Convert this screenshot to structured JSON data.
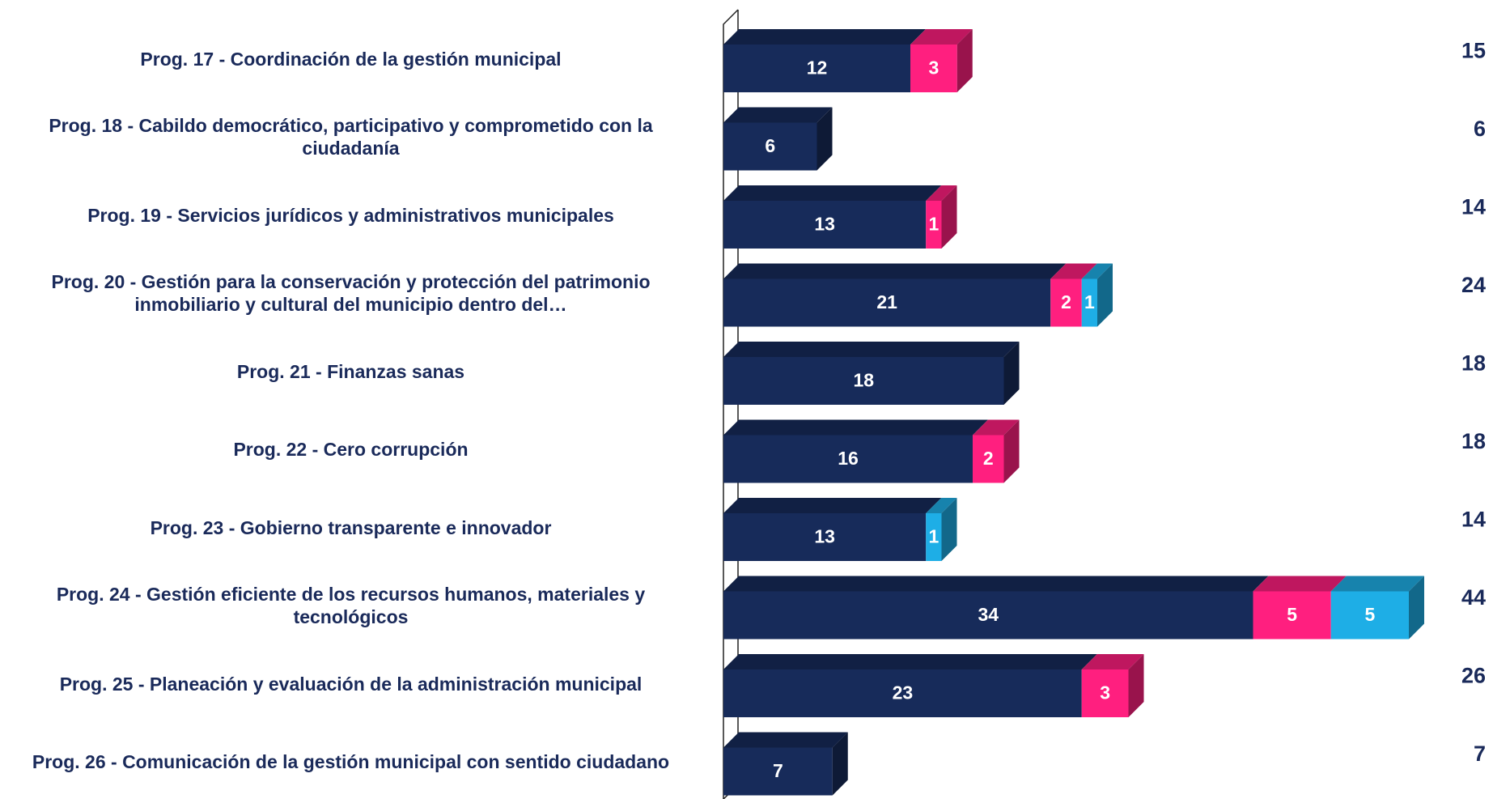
{
  "chart_data": {
    "type": "bar",
    "orientation": "horizontal",
    "stacked": true,
    "categories": [
      "Prog. 17 - Coordinación de la gestión municipal",
      "Prog. 18 - Cabildo democrático, participativo y comprometido con la ciudadanía",
      "Prog. 19 - Servicios jurídicos y administrativos municipales",
      "Prog. 20 - Gestión para la conservación y protección del patrimonio inmobiliario y cultural del municipio dentro del…",
      "Prog. 21 - Finanzas sanas",
      "Prog. 22 - Cero corrupción",
      "Prog. 23 - Gobierno transparente e innovador",
      "Prog. 24 - Gestión eficiente de los recursos humanos, materiales y tecnológicos",
      "Prog. 25 - Planeación y evaluación de la administración municipal",
      "Prog. 26 - Comunicación de la gestión municipal con sentido ciudadano"
    ],
    "series": [
      {
        "color": "#172b5a",
        "values": [
          12,
          6,
          13,
          21,
          18,
          16,
          13,
          34,
          23,
          7
        ]
      },
      {
        "color": "#ff1f7f",
        "values": [
          3,
          null,
          1,
          2,
          null,
          2,
          null,
          5,
          3,
          null
        ]
      },
      {
        "color": "#1eaee6",
        "values": [
          null,
          null,
          null,
          1,
          null,
          null,
          1,
          5,
          null,
          null
        ]
      }
    ],
    "totals": [
      15,
      6,
      14,
      24,
      18,
      18,
      14,
      44,
      26,
      7
    ],
    "xlim": [
      0,
      44
    ]
  }
}
